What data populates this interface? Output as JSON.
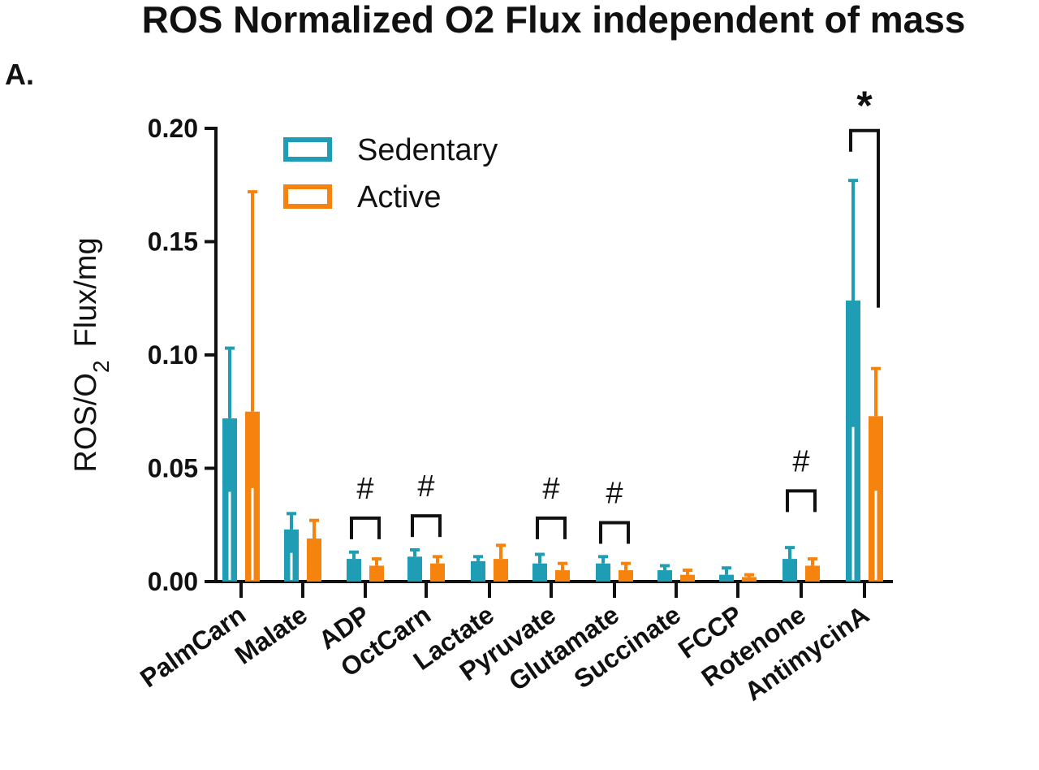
{
  "chart_data": {
    "type": "bar",
    "title": "ROS Normalized O2 Flux independent of mass",
    "panel_label": "A.",
    "ylabel": "ROS/O",
    "ylabel_sub": "2",
    "ylabel_suffix": "Flux/mg",
    "ylim": [
      0,
      0.2
    ],
    "yticks": [
      "0.00",
      "0.05",
      "0.10",
      "0.15",
      "0.20"
    ],
    "categories": [
      "PalmCarn",
      "Malate",
      "ADP",
      "OctCarn",
      "Lactate",
      "Pyruvate",
      "Glutamate",
      "Succinate",
      "FCCP",
      "Rotenone",
      "AntimycinA"
    ],
    "series": [
      {
        "name": "Sedentary",
        "color": "#1f9db5",
        "values": [
          0.072,
          0.023,
          0.01,
          0.011,
          0.009,
          0.008,
          0.008,
          0.005,
          0.003,
          0.01,
          0.124
        ],
        "errors": [
          0.031,
          0.007,
          0.003,
          0.003,
          0.002,
          0.004,
          0.003,
          0.002,
          0.003,
          0.005,
          0.053
        ]
      },
      {
        "name": "Active",
        "color": "#f7830f",
        "values": [
          0.075,
          0.019,
          0.007,
          0.008,
          0.01,
          0.005,
          0.005,
          0.003,
          0.002,
          0.007,
          0.073
        ],
        "errors": [
          0.097,
          0.008,
          0.003,
          0.003,
          0.006,
          0.003,
          0.003,
          0.002,
          0.001,
          0.003,
          0.021
        ]
      }
    ],
    "significance": [
      {
        "category": "ADP",
        "label": "#",
        "bracket_y": 0.028
      },
      {
        "category": "OctCarn",
        "label": "#",
        "bracket_y": 0.029
      },
      {
        "category": "Pyruvate",
        "label": "#",
        "bracket_y": 0.028
      },
      {
        "category": "Glutamate",
        "label": "#",
        "bracket_y": 0.026
      },
      {
        "category": "Rotenone",
        "label": "#",
        "bracket_y": 0.04
      },
      {
        "category": "AntimycinA",
        "label": "*",
        "bracket_y": 0.199
      }
    ],
    "legend": "top-left",
    "grid": false
  }
}
